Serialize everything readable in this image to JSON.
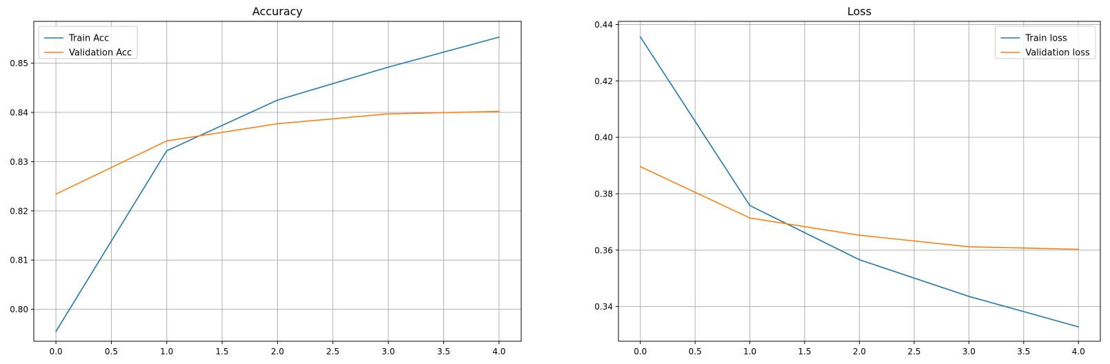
{
  "chart_data": [
    {
      "type": "line",
      "title": "Accuracy",
      "xlabel": "",
      "ylabel": "",
      "x": [
        0,
        1,
        2,
        3,
        4
      ],
      "xticks": [
        0.0,
        0.5,
        1.0,
        1.5,
        2.0,
        2.5,
        3.0,
        3.5,
        4.0
      ],
      "xtick_labels": [
        "0.0",
        "0.5",
        "1.0",
        "1.5",
        "2.0",
        "2.5",
        "3.0",
        "3.5",
        "4.0"
      ],
      "yticks": [
        0.8,
        0.81,
        0.82,
        0.83,
        0.84,
        0.85
      ],
      "ytick_labels": [
        "0.80",
        "0.81",
        "0.82",
        "0.83",
        "0.84",
        "0.85"
      ],
      "xlim": [
        -0.2,
        4.2
      ],
      "ylim": [
        0.7935,
        0.8585
      ],
      "grid": true,
      "legend_position": "upper-left",
      "series": [
        {
          "name": "Train Acc",
          "color": "#1f77b4",
          "values": [
            0.7955,
            0.8322,
            0.8425,
            0.8492,
            0.8553
          ]
        },
        {
          "name": "Validation Acc",
          "color": "#ff7f0e",
          "values": [
            0.8234,
            0.8342,
            0.8377,
            0.8397,
            0.8402
          ]
        }
      ]
    },
    {
      "type": "line",
      "title": "Loss",
      "xlabel": "",
      "ylabel": "",
      "x": [
        0,
        1,
        2,
        3,
        4
      ],
      "xticks": [
        0.0,
        0.5,
        1.0,
        1.5,
        2.0,
        2.5,
        3.0,
        3.5,
        4.0
      ],
      "xtick_labels": [
        "0.0",
        "0.5",
        "1.0",
        "1.5",
        "2.0",
        "2.5",
        "3.0",
        "3.5",
        "4.0"
      ],
      "yticks": [
        0.34,
        0.36,
        0.38,
        0.4,
        0.42,
        0.44
      ],
      "ytick_labels": [
        "0.34",
        "0.36",
        "0.38",
        "0.40",
        "0.42",
        "0.44"
      ],
      "xlim": [
        -0.2,
        4.2
      ],
      "ylim": [
        0.3277,
        0.4411
      ],
      "grid": true,
      "legend_position": "upper-right",
      "series": [
        {
          "name": "Train loss",
          "color": "#1f77b4",
          "values": [
            0.4356,
            0.3758,
            0.3566,
            0.3436,
            0.3328
          ]
        },
        {
          "name": "Validation loss",
          "color": "#ff7f0e",
          "values": [
            0.3896,
            0.3714,
            0.3653,
            0.3612,
            0.3603
          ]
        }
      ]
    }
  ]
}
